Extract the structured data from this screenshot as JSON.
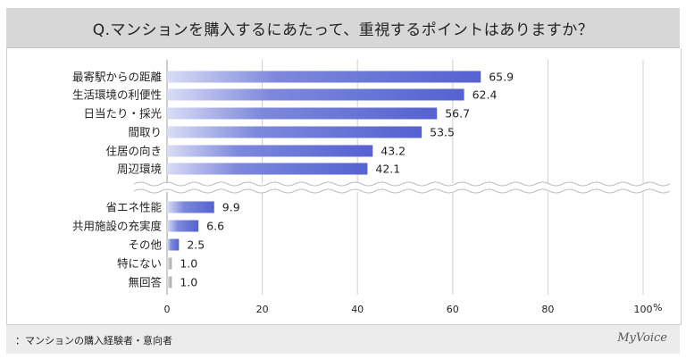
{
  "header": {
    "title": "Q.マンションを購入するにあたって、重視するポイントはありますか？"
  },
  "footer": {
    "note": "：マンションの購入経験者・意向者",
    "brand": "MyVoice"
  },
  "colors": {
    "bar_main": "#5562d0",
    "bar_gray": "#a6a6a6",
    "grid": "#cfcfcf"
  },
  "chart_data": {
    "type": "bar",
    "orientation": "horizontal",
    "categories": [
      "最寄駅からの距離",
      "生活環境の利便性",
      "日当たり・採光",
      "間取り",
      "住居の向き",
      "周辺環境",
      "省エネ性能",
      "共用施設の充実度",
      "その他",
      "特にない",
      "無回答"
    ],
    "values": [
      65.9,
      62.4,
      56.7,
      53.5,
      43.2,
      42.1,
      9.9,
      6.6,
      2.5,
      1.0,
      1.0
    ],
    "value_labels": [
      "65.9",
      "62.4",
      "56.7",
      "53.5",
      "43.2",
      "42.1",
      "9.9",
      "6.6",
      "2.5",
      "1.0",
      "1.0"
    ],
    "gray_categories": [
      "特にない",
      "無回答"
    ],
    "xlim": [
      0,
      100
    ],
    "xticks": [
      "0",
      "20",
      "40",
      "60",
      "80",
      "100"
    ],
    "xunit": "%",
    "grid": true,
    "axis_break_after": "周辺環境"
  }
}
